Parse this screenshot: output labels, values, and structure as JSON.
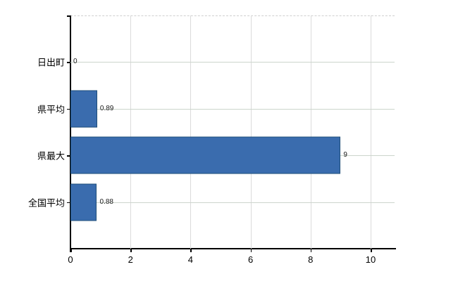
{
  "chart_data": {
    "type": "bar",
    "orientation": "horizontal",
    "title": "",
    "categories": [
      "日出町",
      "県平均",
      "県最大",
      "全国平均"
    ],
    "values": [
      0,
      0.89,
      9,
      0.88
    ],
    "value_labels": [
      "0",
      "0.89",
      "9",
      "0.88"
    ],
    "x_ticks": [
      0,
      2,
      4,
      6,
      8,
      10
    ],
    "x_tick_labels": [
      "0",
      "2",
      "4",
      "6",
      "8",
      "10"
    ],
    "xlim": [
      0,
      10.85
    ],
    "grid": true,
    "legend": "none",
    "colors": {
      "bar_fill": "#3a6cae",
      "bar_border": "#1f4e79",
      "vertical_gridline": "#dbdbdb",
      "horizontal_gridline": "#ccd5cc",
      "axis": "#000000",
      "text": "#000000",
      "plot_top_border": "#cfcfcf",
      "background": "#ffffff"
    }
  }
}
